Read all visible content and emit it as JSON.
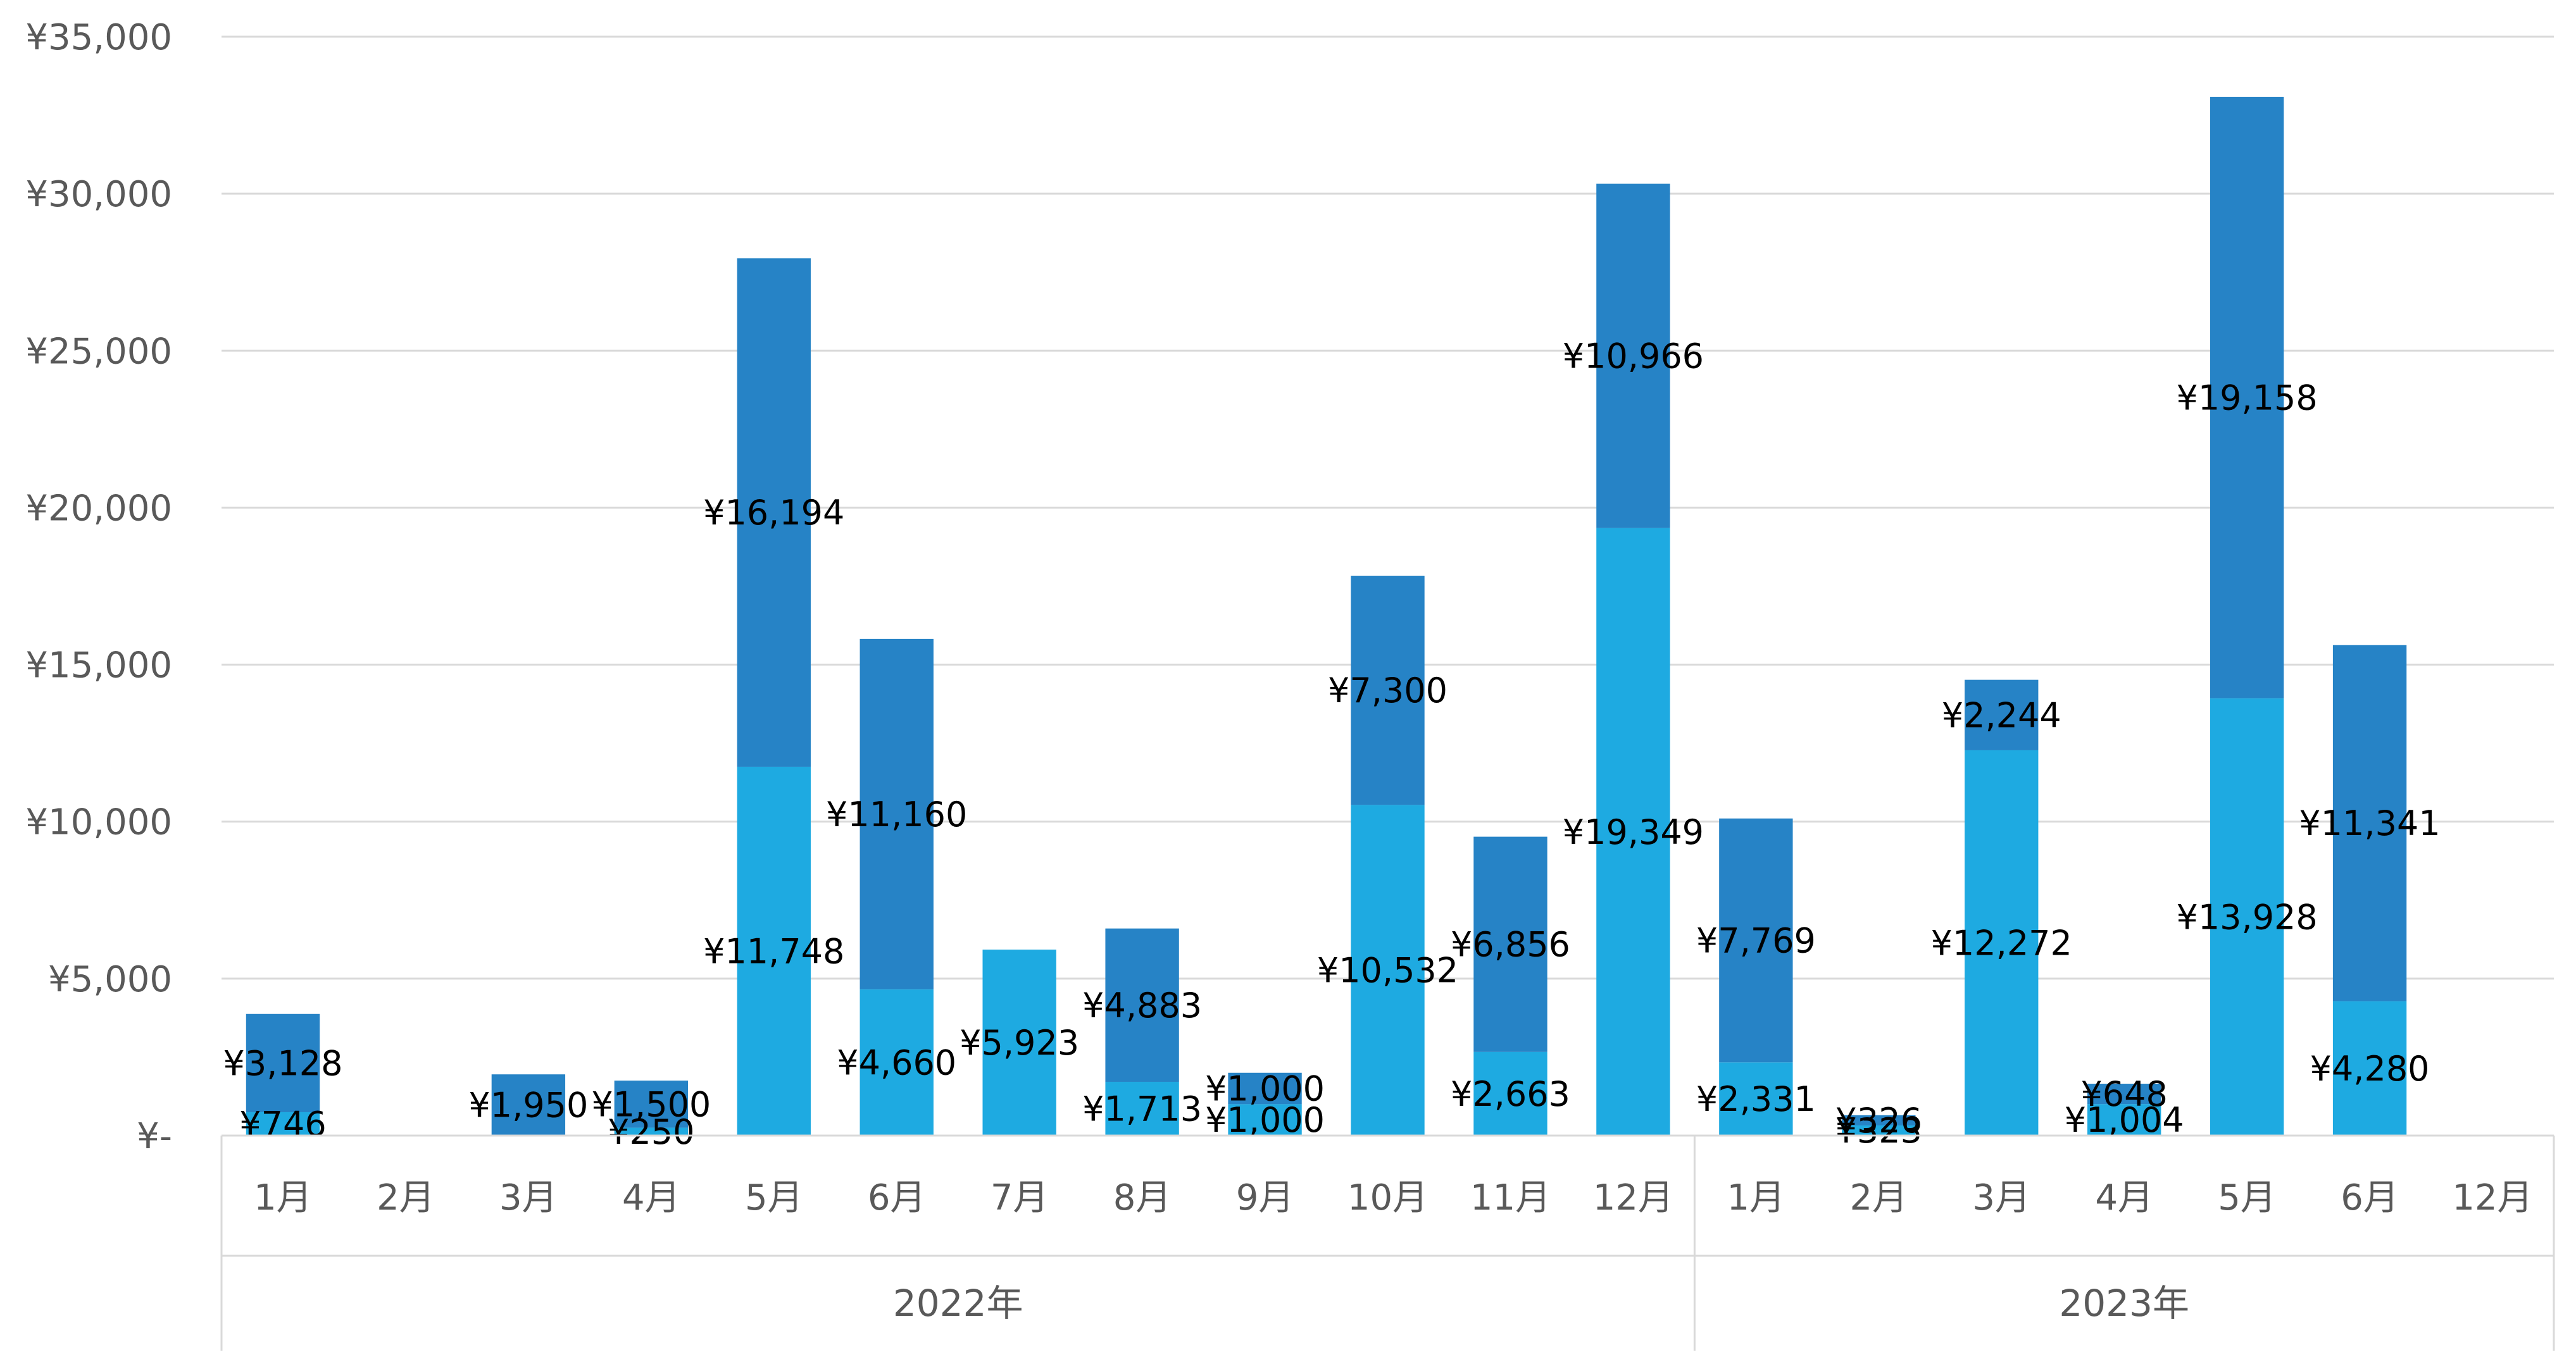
{
  "chart_data": {
    "type": "bar",
    "stacked": true,
    "ylim": [
      0,
      35000
    ],
    "y_ticks": [
      0,
      5000,
      10000,
      15000,
      20000,
      25000,
      30000,
      35000
    ],
    "y_tick_labels": [
      "¥-",
      "¥5,000",
      "¥10,000",
      "¥15,000",
      "¥20,000",
      "¥25,000",
      "¥30,000",
      "¥35,000"
    ],
    "grid": true,
    "legend": "none",
    "groups": [
      {
        "label": "2022年",
        "count": 12
      },
      {
        "label": "2023年",
        "count": 7
      }
    ],
    "categories": [
      "1月",
      "2月",
      "3月",
      "4月",
      "5月",
      "6月",
      "7月",
      "8月",
      "9月",
      "10月",
      "11月",
      "12月",
      "1月",
      "2月",
      "3月",
      "4月",
      "5月",
      "6月",
      "12月"
    ],
    "series": [
      {
        "color": "#1EAAE1",
        "values": [
          746,
          null,
          0,
          250,
          11748,
          4660,
          5923,
          1713,
          1000,
          10532,
          2663,
          19349,
          2331,
          323,
          12272,
          1004,
          13928,
          4280,
          null
        ],
        "labels": [
          "¥746",
          "",
          "",
          "¥250",
          "¥11,748",
          "¥4,660",
          "¥5,923",
          "¥1,713",
          "¥1,000",
          "¥10,532",
          "¥2,663",
          "¥19,349",
          "¥2,331",
          "¥323",
          "¥12,272",
          "¥1,004",
          "¥13,928",
          "¥4,280",
          ""
        ]
      },
      {
        "color": "#2683C6",
        "values": [
          3128,
          null,
          1950,
          1500,
          16194,
          11160,
          null,
          4883,
          1000,
          7300,
          6856,
          10966,
          7769,
          326,
          2244,
          648,
          19158,
          11341,
          null
        ],
        "labels": [
          "¥3,128",
          "",
          "¥1,950",
          "¥1,500",
          "¥16,194",
          "¥11,160",
          "",
          "¥4,883",
          "¥1,000",
          "¥7,300",
          "¥6,856",
          "¥10,966",
          "¥7,769",
          "¥326",
          "¥2,244",
          "¥648",
          "¥19,158",
          "¥11,341",
          ""
        ]
      }
    ]
  },
  "colors": {
    "gridline": "#D9D9D9",
    "axis_text": "#595959",
    "label_text": "#000000"
  }
}
